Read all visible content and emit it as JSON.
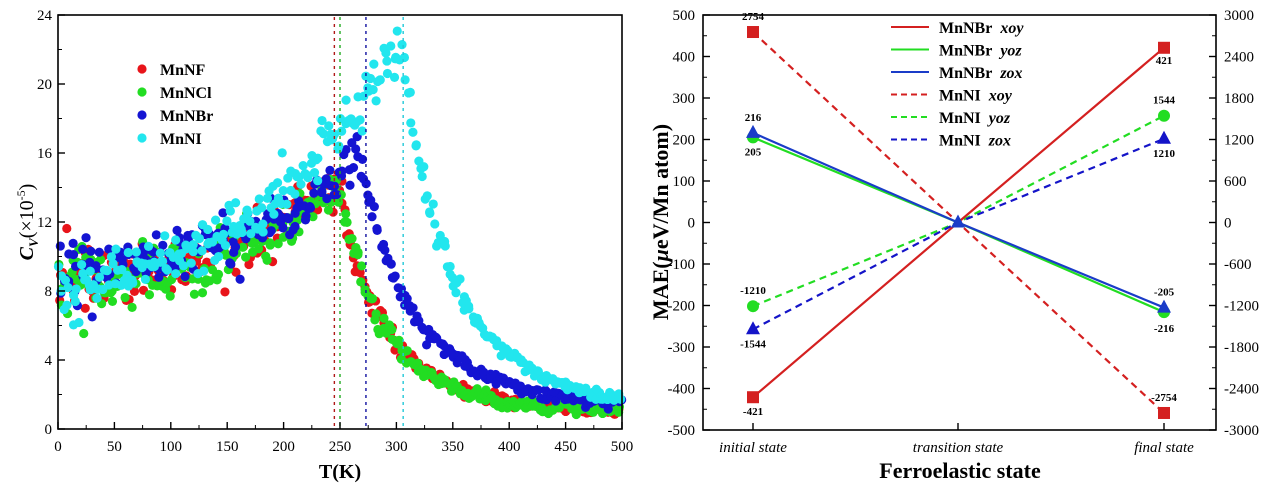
{
  "chart_data": [
    {
      "type": "scatter",
      "title": "",
      "xlabel": "T(K)",
      "ylabel_main": "C",
      "ylabel_sub": "V",
      "ylabel_suffix": "(×10",
      "ylabel_exp": "-5",
      "ylabel_close": ")",
      "xlim": [
        0,
        500
      ],
      "ylim": [
        0,
        24
      ],
      "xticks": [
        0,
        50,
        100,
        150,
        200,
        250,
        300,
        350,
        400,
        450,
        500
      ],
      "yticks": [
        0,
        4,
        8,
        12,
        16,
        20,
        24
      ],
      "grid": false,
      "legend_position": "top-left",
      "series": [
        {
          "name": "MnNF",
          "color": "#e8141a",
          "transition_T": 245,
          "peak_T": 248,
          "peak_value": 14.5,
          "low_T_value": 8.5,
          "high_T_value": 1.1
        },
        {
          "name": "MnNCl",
          "color": "#22dd22",
          "transition_T": 250,
          "peak_T": 250,
          "peak_value": 14.3,
          "low_T_value": 8.3,
          "high_T_value": 1.0
        },
        {
          "name": "MnNBr",
          "color": "#1414d2",
          "transition_T": 273,
          "peak_T": 268,
          "peak_value": 16.0,
          "low_T_value": 9.0,
          "high_T_value": 1.3
        },
        {
          "name": "MnNI",
          "color": "#22e6ee",
          "transition_T": 306,
          "peak_T": 304,
          "peak_value": 22.5,
          "low_T_value": 8.0,
          "high_T_value": 1.3
        }
      ]
    },
    {
      "type": "line",
      "title": "",
      "xlabel": "Ferroelastic state",
      "ylabel": "MAE(μeV/Mn atom)",
      "ylabel_parts": [
        "MAE(",
        "μ",
        "eV/Mn atom)"
      ],
      "categories": [
        "initial state",
        "transition state",
        "final state"
      ],
      "ylim": [
        -500,
        500
      ],
      "yticks": [
        -500,
        -400,
        -300,
        -200,
        -100,
        0,
        100,
        200,
        300,
        400,
        500
      ],
      "y2lim": [
        -3000,
        3000
      ],
      "y2ticks": [
        -3000,
        -2400,
        -1800,
        -1200,
        -600,
        0,
        600,
        1200,
        1800,
        2400,
        3000
      ],
      "grid": false,
      "legend_position": "top-right",
      "series": [
        {
          "name": "MnNBr",
          "plane": "xoy",
          "color": "#d42020",
          "dash": false,
          "marker": "square",
          "axis": "left",
          "values": [
            -421,
            0,
            421
          ],
          "labels": [
            "-421",
            "",
            "421"
          ]
        },
        {
          "name": "MnNBr",
          "plane": "yoz",
          "color": "#22dd22",
          "dash": false,
          "marker": "circle",
          "axis": "left",
          "values": [
            205,
            0,
            -216
          ],
          "labels": [
            "205",
            "",
            "-216"
          ]
        },
        {
          "name": "MnNBr",
          "plane": "zox",
          "color": "#1a3cc8",
          "dash": false,
          "marker": "triangle",
          "axis": "left",
          "values": [
            216,
            0,
            -205
          ],
          "labels": [
            "216",
            "",
            "-205"
          ]
        },
        {
          "name": "MnNI",
          "plane": "xoy",
          "color": "#d42020",
          "dash": true,
          "marker": "square",
          "axis": "right",
          "values": [
            2754,
            0,
            -2754
          ],
          "labels": [
            "2754",
            "",
            "-2754"
          ]
        },
        {
          "name": "MnNI",
          "plane": "yoz",
          "color": "#22dd22",
          "dash": true,
          "marker": "circle",
          "axis": "right",
          "values": [
            -1210,
            0,
            1544
          ],
          "labels": [
            "-1210",
            "",
            "1544"
          ]
        },
        {
          "name": "MnNI",
          "plane": "zox",
          "color": "#1414c8",
          "dash": true,
          "marker": "triangle",
          "axis": "right",
          "values": [
            -1544,
            0,
            1210
          ],
          "labels": [
            "-1544",
            "",
            "1210"
          ]
        }
      ]
    }
  ]
}
